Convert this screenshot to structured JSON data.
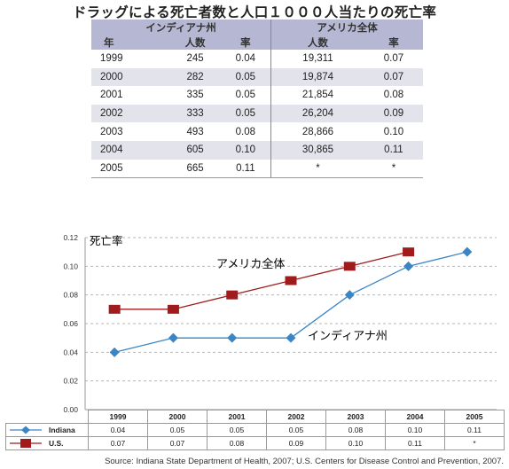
{
  "table": {
    "title": "ドラッグによる死亡者数と人口１０００人当たりの死亡率",
    "group_indiana": "インディアナ州",
    "group_us": "アメリカ全体",
    "col_year": "年",
    "col_people_in": "人数",
    "col_rate_in": "率",
    "col_people_us": "人数",
    "col_rate_us": "率",
    "rows": [
      {
        "year": "1999",
        "in_people": "245",
        "in_rate": "0.04",
        "us_people": "19,311",
        "us_rate": "0.07"
      },
      {
        "year": "2000",
        "in_people": "282",
        "in_rate": "0.05",
        "us_people": "19,874",
        "us_rate": "0.07"
      },
      {
        "year": "2001",
        "in_people": "335",
        "in_rate": "0.05",
        "us_people": "21,854",
        "us_rate": "0.08"
      },
      {
        "year": "2002",
        "in_people": "333",
        "in_rate": "0.05",
        "us_people": "26,204",
        "us_rate": "0.09"
      },
      {
        "year": "2003",
        "in_people": "493",
        "in_rate": "0.08",
        "us_people": "28,866",
        "us_rate": "0.10"
      },
      {
        "year": "2004",
        "in_people": "605",
        "in_rate": "0.10",
        "us_people": "30,865",
        "us_rate": "0.11"
      },
      {
        "year": "2005",
        "in_people": "665",
        "in_rate": "0.11",
        "us_people": "*",
        "us_rate": "*"
      }
    ]
  },
  "source": "Source: Indiana State Department of Health, 2007; U.S. Centers for Disease Control and Prevention, 2007.",
  "chart_data": {
    "type": "line",
    "ylabel": "死亡率",
    "ylim": [
      0.0,
      0.12
    ],
    "ytick_labels": [
      "0.00",
      "0.02",
      "0.04",
      "0.06",
      "0.08",
      "0.10",
      "0.12"
    ],
    "categories": [
      "1999",
      "2000",
      "2001",
      "2002",
      "2003",
      "2004",
      "2005"
    ],
    "grid": "horizontal dashed",
    "series": [
      {
        "name": "Indiana",
        "annotation": "インディアナ州",
        "color": "#3a85c6",
        "marker": "diamond",
        "values": [
          0.04,
          0.05,
          0.05,
          0.05,
          0.08,
          0.1,
          0.11
        ],
        "labels": [
          "0.04",
          "0.05",
          "0.05",
          "0.05",
          "0.08",
          "0.10",
          "0.11"
        ]
      },
      {
        "name": "U.S.",
        "annotation": "アメリカ全体",
        "color": "#a01c1c",
        "marker": "square",
        "values": [
          0.07,
          0.07,
          0.08,
          0.09,
          0.1,
          0.11,
          null
        ],
        "labels": [
          "0.07",
          "0.07",
          "0.08",
          "0.09",
          "0.10",
          "0.11",
          "*"
        ]
      }
    ]
  }
}
